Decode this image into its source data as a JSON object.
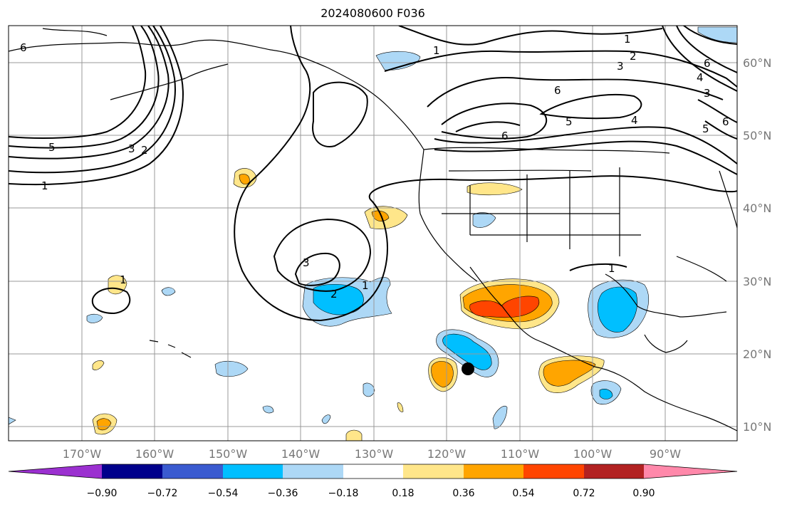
{
  "title": "2024080600 F036",
  "lon_labels": [
    "170°W",
    "160°W",
    "150°W",
    "140°W",
    "130°W",
    "120°W",
    "110°W",
    "100°W",
    "90°W"
  ],
  "lat_labels": [
    "60°N",
    "50°N",
    "40°N",
    "30°N",
    "20°N",
    "10°N"
  ],
  "colorbar": {
    "ticks": [
      "−0.90",
      "−0.72",
      "−0.54",
      "−0.36",
      "−0.18",
      "0.18",
      "0.36",
      "0.54",
      "0.72",
      "0.90"
    ],
    "colors": [
      "#9b30d0",
      "#00008b",
      "#3a5bd0",
      "#00bfff",
      "#add8f6",
      "#ffffff",
      "#ffe68a",
      "#ffa500",
      "#ff4500",
      "#b22222",
      "#ff88aa"
    ]
  },
  "contour_labels": [
    "6",
    "5",
    "3",
    "2",
    "1",
    "3",
    "2",
    "1",
    "1",
    "1",
    "2",
    "3",
    "4",
    "6",
    "5",
    "6",
    "4",
    "5",
    "6",
    "3",
    "1",
    "1",
    "6"
  ],
  "marker": "storm-center-marker"
}
